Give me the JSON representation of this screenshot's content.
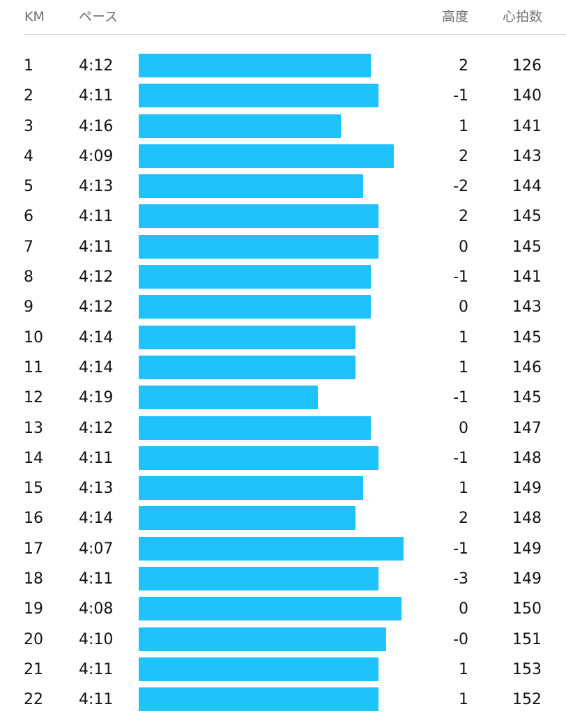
{
  "accent_color": "#20c2fc",
  "header": {
    "km": "KM",
    "pace": "ペース",
    "elevation": "高度",
    "heart_rate": "心拍数"
  },
  "splits": [
    {
      "km": "1",
      "pace": "4:12",
      "elevation": "2",
      "heart_rate": "126"
    },
    {
      "km": "2",
      "pace": "4:11",
      "elevation": "-1",
      "heart_rate": "140"
    },
    {
      "km": "3",
      "pace": "4:16",
      "elevation": "1",
      "heart_rate": "141"
    },
    {
      "km": "4",
      "pace": "4:09",
      "elevation": "2",
      "heart_rate": "143"
    },
    {
      "km": "5",
      "pace": "4:13",
      "elevation": "-2",
      "heart_rate": "144"
    },
    {
      "km": "6",
      "pace": "4:11",
      "elevation": "2",
      "heart_rate": "145"
    },
    {
      "km": "7",
      "pace": "4:11",
      "elevation": "0",
      "heart_rate": "145"
    },
    {
      "km": "8",
      "pace": "4:12",
      "elevation": "-1",
      "heart_rate": "141"
    },
    {
      "km": "9",
      "pace": "4:12",
      "elevation": "0",
      "heart_rate": "143"
    },
    {
      "km": "10",
      "pace": "4:14",
      "elevation": "1",
      "heart_rate": "145"
    },
    {
      "km": "11",
      "pace": "4:14",
      "elevation": "1",
      "heart_rate": "146"
    },
    {
      "km": "12",
      "pace": "4:19",
      "elevation": "-1",
      "heart_rate": "145"
    },
    {
      "km": "13",
      "pace": "4:12",
      "elevation": "0",
      "heart_rate": "147"
    },
    {
      "km": "14",
      "pace": "4:11",
      "elevation": "-1",
      "heart_rate": "148"
    },
    {
      "km": "15",
      "pace": "4:13",
      "elevation": "1",
      "heart_rate": "149"
    },
    {
      "km": "16",
      "pace": "4:14",
      "elevation": "2",
      "heart_rate": "148"
    },
    {
      "km": "17",
      "pace": "4:07",
      "elevation": "-1",
      "heart_rate": "149"
    },
    {
      "km": "18",
      "pace": "4:11",
      "elevation": "-3",
      "heart_rate": "149"
    },
    {
      "km": "19",
      "pace": "4:08",
      "elevation": "0",
      "heart_rate": "150"
    },
    {
      "km": "20",
      "pace": "4:10",
      "elevation": "-0",
      "heart_rate": "151"
    },
    {
      "km": "21",
      "pace": "4:11",
      "elevation": "1",
      "heart_rate": "153"
    },
    {
      "km": "22",
      "pace": "4:11",
      "elevation": "1",
      "heart_rate": "152"
    }
  ]
}
